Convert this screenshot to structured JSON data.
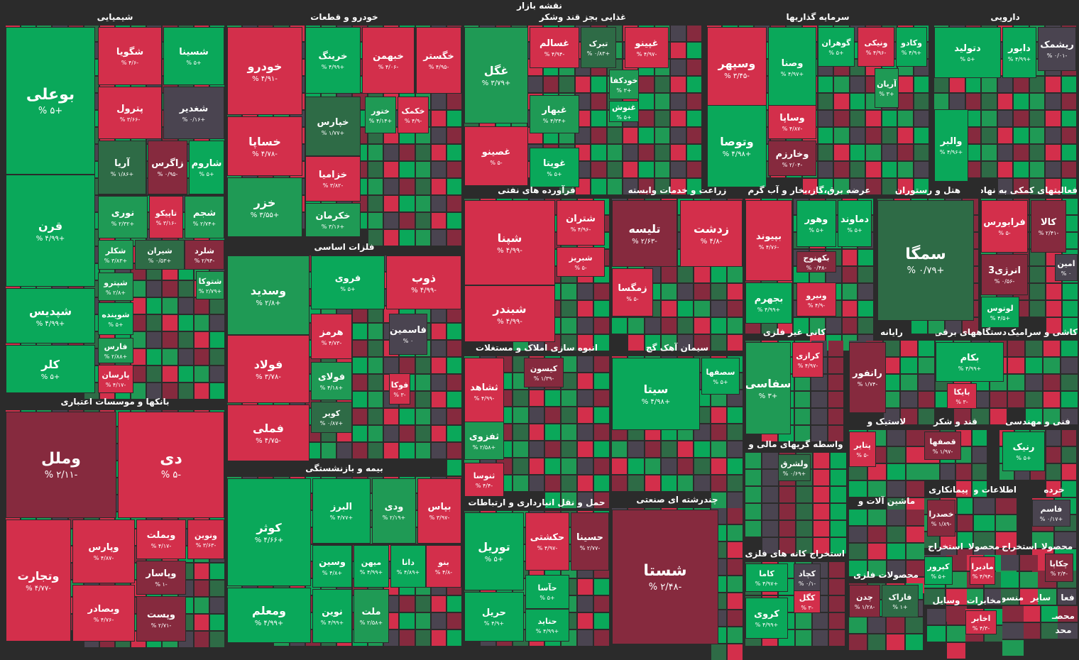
{
  "header": {
    "title": "نقشه بازار"
  },
  "colors": {
    "strong_green": "#0aa85a",
    "green": "#1f9a55",
    "dark_green": "#2e6b46",
    "neutral": "#4a4450",
    "dark_red": "#862a3e",
    "red": "#d32f4b",
    "bright_red": "#e0304e"
  },
  "sectors": [
    {
      "name": "شیمیایی",
      "tiles": [
        {
          "symbol": "بوعلی",
          "change": "+۵ %"
        },
        {
          "symbol": "قرن",
          "change": "+۴/۹۹ %"
        },
        {
          "symbol": "شپدیس",
          "change": "+۴/۹۹ %"
        },
        {
          "symbol": "کلر",
          "change": "+۵ %"
        },
        {
          "symbol": "شگویا",
          "change": "-۴/۶ %"
        },
        {
          "symbol": "شسینا",
          "change": "+۵ %"
        },
        {
          "symbol": "پترول",
          "change": "-۳/۶۶ %"
        },
        {
          "symbol": "شغدیر",
          "change": "+۰/۱۶ %"
        },
        {
          "symbol": "آریا",
          "change": "+۱/۸۶ %"
        },
        {
          "symbol": "زاگرس",
          "change": "-۰/۹۵ %"
        },
        {
          "symbol": "شاروم",
          "change": "+۵ %"
        },
        {
          "symbol": "نوری",
          "change": "+۲/۳۲ %"
        },
        {
          "symbol": "تاپیکو",
          "change": "-۳/۱۶ %"
        },
        {
          "symbol": "شجم",
          "change": "+۲/۷۴ %"
        },
        {
          "symbol": "شکلر",
          "change": "+۳/۸۳ %"
        },
        {
          "symbol": "شیران",
          "change": "+۰/۵۳ %"
        },
        {
          "symbol": "شلرد",
          "change": "-۲/۹۴ %"
        },
        {
          "symbol": "شپترو",
          "change": "+۲/۸ %"
        },
        {
          "symbol": "شتوکا",
          "change": "+۲/۷۹ %"
        },
        {
          "symbol": "شوینده",
          "change": "+۵ %"
        },
        {
          "symbol": "فارس",
          "change": "+۲/۸۸ %"
        },
        {
          "symbol": "پارسان",
          "change": "-۴/۱۷ %"
        }
      ]
    },
    {
      "name": "خودرو و قطعات",
      "tiles": [
        {
          "symbol": "خودرو",
          "change": "-۴/۹۱ %"
        },
        {
          "symbol": "خساپا",
          "change": "-۴/۷۸ %"
        },
        {
          "symbol": "خزر",
          "change": "+۳/۵۵ %"
        },
        {
          "symbol": "خرینگ",
          "change": "+۴/۹۹ %"
        },
        {
          "symbol": "خبهمن",
          "change": "-۴/۰۶ %"
        },
        {
          "symbol": "خگستر",
          "change": "-۴/۹۵ %"
        },
        {
          "symbol": "خپارس",
          "change": "+۱/۷۷ %"
        },
        {
          "symbol": "ختور",
          "change": "+۴/۱۴ %"
        },
        {
          "symbol": "خکمک",
          "change": "-۴/۹ %"
        },
        {
          "symbol": "خزامیا",
          "change": "-۳/۸۲ %"
        },
        {
          "symbol": "خکرمان",
          "change": "+۳/۱۶ %"
        }
      ]
    },
    {
      "name": "فلزات اساسی",
      "tiles": [
        {
          "symbol": "وسدید",
          "change": "+۲/۸ %"
        },
        {
          "symbol": "فروی",
          "change": "+۵ %"
        },
        {
          "symbol": "ذوب",
          "change": "-۴/۹۹ %"
        },
        {
          "symbol": "فولاد",
          "change": "-۳/۷۸ %"
        },
        {
          "symbol": "هرمز",
          "change": "-۴/۷۳ %"
        },
        {
          "symbol": "فاسمین",
          "change": "۰ %"
        },
        {
          "symbol": "فولای",
          "change": "+۴/۱۸ %"
        },
        {
          "symbol": "فوکا",
          "change": "-۳ %"
        },
        {
          "symbol": "فملی",
          "change": "-۴/۷۵ %"
        },
        {
          "symbol": "کویر",
          "change": "+۰/۸۷ %"
        }
      ]
    },
    {
      "name": "بیمه و بازنشستگی",
      "tiles": [
        {
          "symbol": "کوثر",
          "change": "+۴/۶۶ %"
        },
        {
          "symbol": "البرز",
          "change": "+۴/۷۷ %"
        },
        {
          "symbol": "ودی",
          "change": "+۲/۱۹ %"
        },
        {
          "symbol": "بپاس",
          "change": "-۳/۹۷ %"
        },
        {
          "symbol": "وسین",
          "change": "+۴/۸ %"
        },
        {
          "symbol": "میهن",
          "change": "+۴/۹۹ %"
        },
        {
          "symbol": "دانا",
          "change": "+۴/۸۹ %"
        },
        {
          "symbol": "بنو",
          "change": "-۴/۸ %"
        },
        {
          "symbol": "ومعلم",
          "change": "+۴/۹۹ %"
        },
        {
          "symbol": "نوین",
          "change": "+۴/۹۹ %"
        },
        {
          "symbol": "ملت",
          "change": "+۲/۵۸ %"
        }
      ]
    },
    {
      "name": "بانکها و موسسات اعتباری",
      "tiles": [
        {
          "symbol": "وملل",
          "change": "-۲/۱۱ %"
        },
        {
          "symbol": "دی",
          "change": "-۵ %"
        },
        {
          "symbol": "وتجارت",
          "change": "-۴/۷۷ %"
        },
        {
          "symbol": "وپارس",
          "change": "-۴/۸۷ %"
        },
        {
          "symbol": "وبملت",
          "change": "-۴/۱۷ %"
        },
        {
          "symbol": "ونوین",
          "change": "-۳/۶۳ %"
        },
        {
          "symbol": "وپاسار",
          "change": "-۱ %"
        },
        {
          "symbol": "وبصادر",
          "change": "-۴/۷۶ %"
        },
        {
          "symbol": "وپست",
          "change": "-۲/۷۱ %"
        }
      ]
    },
    {
      "name": "غذایی بجز قند وشکر",
      "tiles": [
        {
          "symbol": "غگل",
          "change": "+۳/۷۹ %"
        },
        {
          "symbol": "غسالم",
          "change": "-۴/۹۴ %"
        },
        {
          "symbol": "تبرک",
          "change": "+۰/۸۳ %"
        },
        {
          "symbol": "غپینو",
          "change": "-۴/۹۷ %"
        },
        {
          "symbol": "خودکفا",
          "change": "+۳ %"
        },
        {
          "symbol": "غبهار",
          "change": "+۴/۳۴ %"
        },
        {
          "symbol": "غنوش",
          "change": "+۵ %"
        },
        {
          "symbol": "غصینو",
          "change": "-۵ %"
        },
        {
          "symbol": "غویتا",
          "change": "+۵ %"
        }
      ]
    },
    {
      "name": "فرآورده های نفتی",
      "tiles": [
        {
          "symbol": "شپنا",
          "change": "-۴/۹۹ %"
        },
        {
          "symbol": "شتران",
          "change": "-۴/۹۶ %"
        },
        {
          "symbol": "شبریز",
          "change": "-۵ %"
        },
        {
          "symbol": "شبندر",
          "change": "-۴/۹۹ %"
        }
      ]
    },
    {
      "name": "انبوه سازی املاک و مستغلات",
      "tiles": [
        {
          "symbol": "ثشاهد",
          "change": "-۴/۹۹ %"
        },
        {
          "symbol": "کیسون",
          "change": "-۱/۳۹ %"
        },
        {
          "symbol": "ثفزوی",
          "change": "+۲/۵۸ %"
        },
        {
          "symbol": "ثنوسا",
          "change": "-۴/۴ %"
        }
      ]
    },
    {
      "name": "حمل و نقل انبارداری و ارتباطات",
      "tiles": [
        {
          "symbol": "توریل",
          "change": "+۵ %"
        },
        {
          "symbol": "حکشتی",
          "change": "-۴/۹۷ %"
        },
        {
          "symbol": "حسینا",
          "change": "-۲/۷۷ %"
        },
        {
          "symbol": "حآسا",
          "change": "+۵ %"
        },
        {
          "symbol": "حریل",
          "change": "+۴/۹ %"
        },
        {
          "symbol": "حتاید",
          "change": "+۴/۹۹ %"
        }
      ]
    },
    {
      "name": "زراعت و خدمات وابسته",
      "tiles": [
        {
          "symbol": "تلیسه",
          "change": "-۲/۶۳ %"
        },
        {
          "symbol": "زدشت",
          "change": "-۴/۸ %"
        },
        {
          "symbol": "زمگسا",
          "change": "-۵ %"
        }
      ]
    },
    {
      "name": "سیمان آهک گچ",
      "tiles": [
        {
          "symbol": "سیتا",
          "change": "+۴/۹۸ %"
        },
        {
          "symbol": "سصفها",
          "change": "+۵ %"
        }
      ]
    },
    {
      "name": "چندرشته ای صنعتی",
      "tiles": [
        {
          "symbol": "شستا",
          "change": "-۲/۴۸ %"
        }
      ]
    },
    {
      "name": "سرمایه گذاریها",
      "tiles": [
        {
          "symbol": "وسپهر",
          "change": "-۳/۴۵ %"
        },
        {
          "symbol": "وصنا",
          "change": "+۴/۹۷ %"
        },
        {
          "symbol": "گوهران",
          "change": "+۵ %"
        },
        {
          "symbol": "ونیکی",
          "change": "-۴/۹۶ %"
        },
        {
          "symbol": "وکادو",
          "change": "+۴/۹ %"
        },
        {
          "symbol": "آریان",
          "change": "+۳ %"
        },
        {
          "symbol": "وتوصا",
          "change": "+۴/۹۸ %"
        },
        {
          "symbol": "وساپا",
          "change": "-۴/۸۷ %"
        },
        {
          "symbol": "وخارزم",
          "change": "-۲/۰۴ %"
        }
      ]
    },
    {
      "name": "دارویی",
      "tiles": [
        {
          "symbol": "دتولید",
          "change": "+۵ %"
        },
        {
          "symbol": "دابور",
          "change": "+۴/۹۹ %"
        },
        {
          "symbol": "ریشمک",
          "change": "-۰/۰۱ %"
        },
        {
          "symbol": "والبر",
          "change": "+۴/۹۶ %"
        }
      ]
    },
    {
      "name": "عرضه برق،گاز،بخار و آب گرم",
      "tiles": [
        {
          "symbol": "بپیوند",
          "change": "-۴/۷۶ %"
        },
        {
          "symbol": "وهور",
          "change": "+۵ %"
        },
        {
          "symbol": "دماوند",
          "change": "+۵ %"
        },
        {
          "symbol": "بکهنوج",
          "change": "-۰/۴۸ %"
        },
        {
          "symbol": "بجهرم",
          "change": "+۴/۹۹ %"
        },
        {
          "symbol": "ونیرو",
          "change": "-۴/۹ %"
        }
      ]
    },
    {
      "name": "هتل و رستوران",
      "tiles": [
        {
          "symbol": "سمگا",
          "change": "+۰/۷۹ %"
        }
      ]
    },
    {
      "name": "فعالیتهای کمکی به نهاد",
      "tiles": [
        {
          "symbol": "فرابورس",
          "change": "-۵ %"
        },
        {
          "symbol": "کالا",
          "change": "-۲/۴۱ %"
        },
        {
          "symbol": "انرژی3",
          "change": "-۰/۵۶ %"
        },
        {
          "symbol": "امین",
          "change": "۰ %"
        },
        {
          "symbol": "لوتوس",
          "change": "+۴/۵ %"
        }
      ]
    },
    {
      "name": "کانی غیر فلزی",
      "tiles": [
        {
          "symbol": "سفاسی",
          "change": "+۳ %"
        },
        {
          "symbol": "کرازی",
          "change": "-۴/۹۷ %"
        }
      ]
    },
    {
      "name": "رایانه",
      "tiles": [
        {
          "symbol": "رانفور",
          "change": "-۱/۷۴ %"
        }
      ]
    },
    {
      "name": "دستگاههای برقی",
      "tiles": [
        {
          "symbol": "بکام",
          "change": "+۴/۹۹ %"
        },
        {
          "symbol": "بایکا",
          "change": "-۳ %"
        }
      ]
    },
    {
      "name": "کاشی و سرامیک",
      "tiles": []
    },
    {
      "name": "لاستیک و",
      "tiles": [
        {
          "symbol": "پتایر",
          "change": "-۵ %"
        }
      ]
    },
    {
      "name": "قند و شکر",
      "tiles": [
        {
          "symbol": "قصفها",
          "change": "-۱/۹۷ %"
        }
      ]
    },
    {
      "name": "فنی و مهندسی",
      "tiles": [
        {
          "symbol": "رنیک",
          "change": "+۵ %"
        }
      ]
    },
    {
      "name": "واسطه گریهای مالی و",
      "tiles": [
        {
          "symbol": "ولشرق",
          "change": "+۰/۶۹ %"
        }
      ]
    },
    {
      "name": "ماشین آلات و",
      "tiles": []
    },
    {
      "name": "پیمانکاری",
      "tiles": [
        {
          "symbol": "خصدرا",
          "change": "-۱/۸۹ %"
        }
      ]
    },
    {
      "name": "اطلاعات و",
      "tiles": []
    },
    {
      "name": "خرده",
      "tiles": [
        {
          "symbol": "فاسم",
          "change": "+۰/۱۷ %"
        }
      ]
    },
    {
      "name": "استخراج کانه های فلزی",
      "tiles": [
        {
          "symbol": "کاما",
          "change": "+۴/۹۷ %"
        },
        {
          "symbol": "کچاد",
          "change": "-۰/۱ %"
        },
        {
          "symbol": "کگل",
          "change": "-۳ %"
        },
        {
          "symbol": "کروی",
          "change": "+۴/۹۹ %"
        }
      ]
    },
    {
      "name": "محصولات فلزی",
      "tiles": [
        {
          "symbol": "چدن",
          "change": "-۱/۲۸ %"
        },
        {
          "symbol": "فاراک",
          "change": "+۱ %"
        }
      ]
    },
    {
      "name": "استخراج",
      "tiles": [
        {
          "symbol": "کپرور",
          "change": "+۵ %"
        }
      ]
    },
    {
      "name": "محصولا",
      "tiles": [
        {
          "symbol": "مادیرا",
          "change": "-۴/۹۴ %"
        }
      ]
    },
    {
      "name": "استخراج",
      "tiles": []
    },
    {
      "name": "محصولا",
      "tiles": [
        {
          "symbol": "چکاپا",
          "change": "-۲/۴ %"
        }
      ]
    },
    {
      "name": "وسایل",
      "tiles": []
    },
    {
      "name": "مخابرات",
      "tiles": [
        {
          "symbol": "اخابر",
          "change": "-۴/۳ %"
        }
      ]
    },
    {
      "name": "منسوج",
      "tiles": []
    },
    {
      "name": "سایر",
      "tiles": []
    },
    {
      "name": "فعا",
      "tiles": []
    },
    {
      "name": "محصـ",
      "tiles": []
    },
    {
      "name": "محد",
      "tiles": []
    }
  ]
}
